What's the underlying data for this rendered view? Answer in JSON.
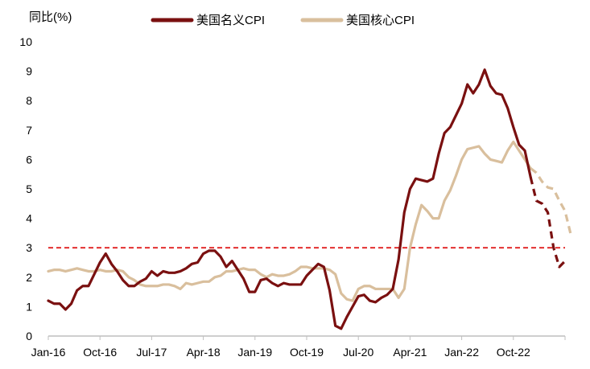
{
  "chart_data": {
    "type": "line",
    "ylabel": "同比(%)",
    "ylim": [
      0,
      10
    ],
    "yticks": [
      0,
      1,
      2,
      3,
      4,
      5,
      6,
      7,
      8,
      9,
      10
    ],
    "xticks": [
      "Jan-16",
      "Oct-16",
      "Jul-17",
      "Apr-18",
      "Jan-19",
      "Oct-19",
      "Jul-20",
      "Apr-21",
      "Jan-22",
      "Oct-22"
    ],
    "x_start": "2016-01",
    "reference_line": {
      "value": 3,
      "color": "#e02020",
      "style": "dashed"
    },
    "legend_position": "top",
    "series": [
      {
        "name": "美国名义CPI",
        "color": "#7a1010",
        "dashed_from": "2023-01",
        "values": [
          1.2,
          1.1,
          1.1,
          0.9,
          1.1,
          1.55,
          1.7,
          1.7,
          2.1,
          2.5,
          2.8,
          2.45,
          2.2,
          1.9,
          1.7,
          1.7,
          1.85,
          1.95,
          2.2,
          2.05,
          2.2,
          2.15,
          2.15,
          2.2,
          2.3,
          2.45,
          2.5,
          2.8,
          2.9,
          2.9,
          2.7,
          2.35,
          2.55,
          2.25,
          1.95,
          1.5,
          1.5,
          1.9,
          1.95,
          1.8,
          1.7,
          1.8,
          1.75,
          1.75,
          1.75,
          2.05,
          2.25,
          2.45,
          2.35,
          1.55,
          0.35,
          0.25,
          0.65,
          1.0,
          1.35,
          1.4,
          1.2,
          1.15,
          1.3,
          1.4,
          1.6,
          2.6,
          4.2,
          5.0,
          5.35,
          5.3,
          5.25,
          5.35,
          6.2,
          6.9,
          7.1,
          7.5,
          7.9,
          8.55,
          8.25,
          8.55,
          9.05,
          8.5,
          8.25,
          8.2,
          7.75,
          7.1,
          6.5,
          6.3,
          5.4,
          4.6,
          4.5,
          4.2,
          3.0,
          2.35,
          2.55
        ]
      },
      {
        "name": "美国核心CPI",
        "color": "#d9bf9d",
        "dashed_from": "2023-01",
        "values": [
          2.2,
          2.25,
          2.25,
          2.2,
          2.25,
          2.3,
          2.25,
          2.2,
          2.2,
          2.25,
          2.2,
          2.2,
          2.25,
          2.2,
          2.0,
          1.9,
          1.75,
          1.7,
          1.7,
          1.7,
          1.75,
          1.75,
          1.7,
          1.6,
          1.8,
          1.75,
          1.8,
          1.85,
          1.85,
          2.0,
          2.05,
          2.2,
          2.2,
          2.25,
          2.3,
          2.25,
          2.25,
          2.1,
          2.0,
          2.1,
          2.05,
          2.05,
          2.1,
          2.2,
          2.35,
          2.35,
          2.3,
          2.3,
          2.3,
          2.25,
          2.1,
          1.45,
          1.25,
          1.2,
          1.6,
          1.7,
          1.7,
          1.6,
          1.6,
          1.6,
          1.6,
          1.3,
          1.6,
          3.0,
          3.8,
          4.45,
          4.25,
          4.0,
          4.0,
          4.6,
          4.95,
          5.45,
          6.0,
          6.35,
          6.4,
          6.45,
          6.2,
          6.0,
          5.95,
          5.9,
          6.3,
          6.6,
          6.3,
          6.0,
          5.7,
          5.55,
          5.25,
          5.05,
          5.0,
          4.6,
          4.25,
          3.45
        ]
      }
    ]
  }
}
